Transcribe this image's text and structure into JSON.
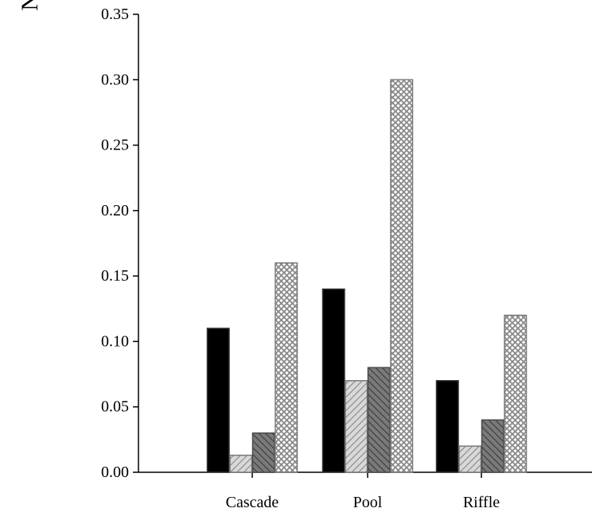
{
  "chart_data": {
    "type": "bar",
    "title": "",
    "xlabel": "",
    "ylabel": "N",
    "ylim": [
      0,
      0.35
    ],
    "yticks": [
      "0.00",
      "0.05",
      "0.10",
      "0.15",
      "0.20",
      "0.25",
      "0.30",
      "0.35"
    ],
    "categories": [
      "Cascade",
      "Pool",
      "Riffle"
    ],
    "grid": false,
    "legend": "none",
    "series": [
      {
        "values": [
          0.11,
          0.14,
          0.07
        ],
        "pattern": "solid",
        "color": "#000000"
      },
      {
        "values": [
          0.013,
          0.07,
          0.02
        ],
        "pattern": "diagonal-light",
        "color": "#b5b5b5"
      },
      {
        "values": [
          0.03,
          0.08,
          0.04
        ],
        "pattern": "diagonal-dark",
        "color": "#6a6a6a"
      },
      {
        "values": [
          0.16,
          0.3,
          0.12
        ],
        "pattern": "crosshatch",
        "color": "#a0a0a0"
      }
    ]
  }
}
